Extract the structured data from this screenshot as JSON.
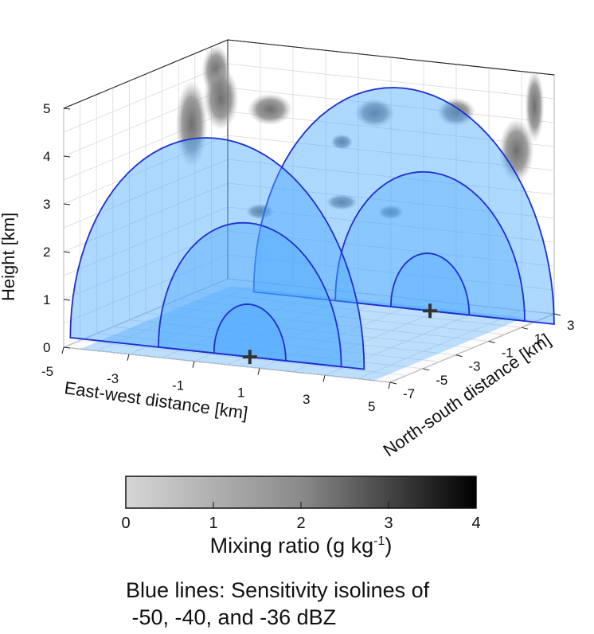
{
  "chart_data": {
    "type": "3d-surface",
    "axes": {
      "x": {
        "label": "East-west distance [km]",
        "ticks": [
          "-5",
          "-3",
          "-1",
          "1",
          "3",
          "5"
        ],
        "range": [
          -5,
          5
        ]
      },
      "y": {
        "label": "North-south distance [km]",
        "ticks": [
          "-7",
          "-5",
          "-3",
          "-1",
          "1",
          "3"
        ],
        "range": [
          -7,
          3
        ]
      },
      "z": {
        "label": "Height [km]",
        "ticks": [
          "0",
          "1",
          "2",
          "3",
          "4",
          "5"
        ],
        "range": [
          0,
          5
        ]
      }
    },
    "sensitivity_isolines_dbz": [
      -50,
      -40,
      -36
    ],
    "radar_markers": 2,
    "colorbar": {
      "label": "Mixing ratio (g kg",
      "label_sup": "-1",
      "label_end": ")",
      "ticks": [
        "0",
        "1",
        "2",
        "3",
        "4"
      ],
      "range": [
        0,
        4
      ]
    },
    "grid": true,
    "colors": {
      "isoline": "#1f2fd0",
      "fill": "#4aa8ff"
    }
  },
  "caption": {
    "line1": "Blue lines: Sensitivity isolines of",
    "line2": " -50, -40, and -36 dBZ"
  }
}
